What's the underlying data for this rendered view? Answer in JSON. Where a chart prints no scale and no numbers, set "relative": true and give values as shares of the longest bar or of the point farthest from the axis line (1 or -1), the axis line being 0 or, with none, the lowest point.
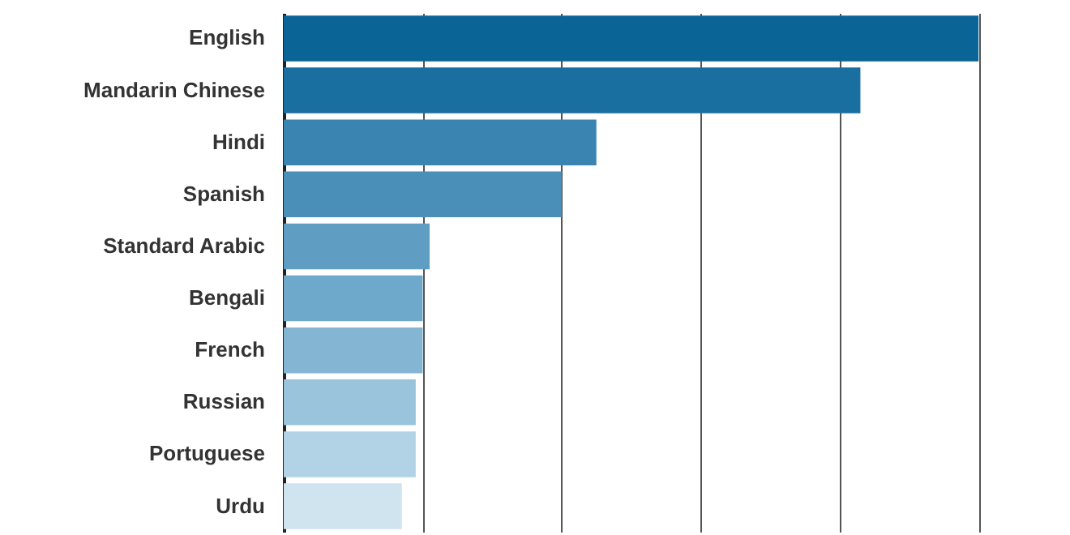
{
  "chart_data": {
    "type": "bar",
    "orientation": "horizontal",
    "relative": true,
    "grid": "x",
    "categories": [
      "English",
      "Mandarin Chinese",
      "Hindi",
      "Spanish",
      "Standard Arabic",
      "Bengali",
      "French",
      "Russian",
      "Portuguese",
      "Urdu"
    ],
    "values": [
      1,
      0.83,
      0.45,
      0.4,
      0.21,
      0.2,
      0.2,
      0.19,
      0.19,
      0.17
    ],
    "colors": [
      "#0b6496",
      "#1a6fa1",
      "#3a84b1",
      "#4a8fb8",
      "#5f9dc3",
      "#6ea8ca",
      "#84b6d3",
      "#9ac4db",
      "#b2d3e5",
      "#d0e4ef"
    ]
  }
}
